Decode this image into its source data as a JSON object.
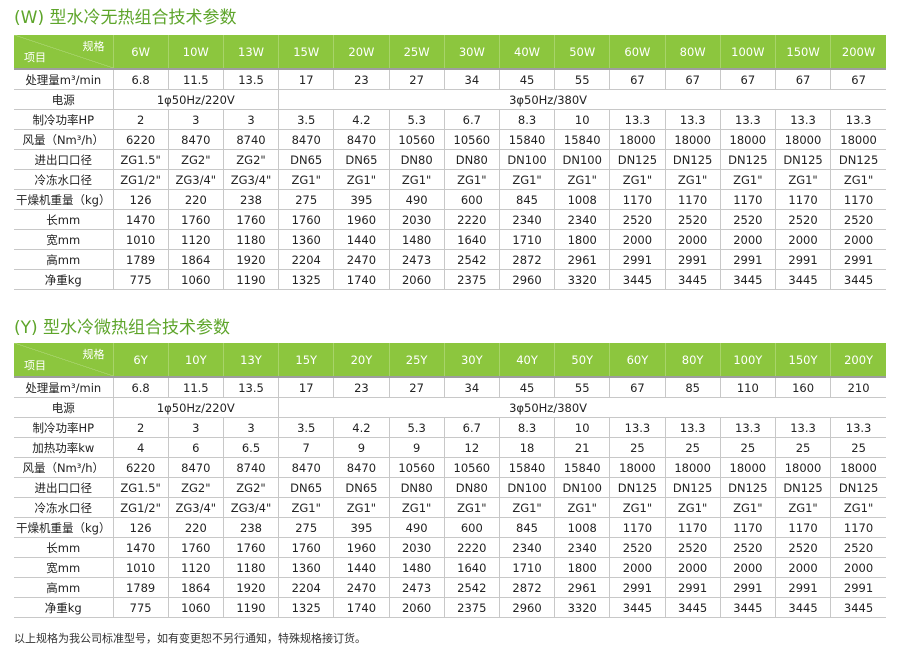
{
  "colors": {
    "accent": "#8cc63e",
    "title": "#5ea52b"
  },
  "tables": [
    {
      "title": "(W) 型水冷无热组合技术参数",
      "corner_top": "规格",
      "corner_bottom": "项目",
      "models": [
        "6W",
        "10W",
        "13W",
        "15W",
        "20W",
        "25W",
        "30W",
        "40W",
        "50W",
        "60W",
        "80W",
        "100W",
        "150W",
        "200W"
      ],
      "power_label": "电源",
      "power_1": "1φ50Hz/220V",
      "power_3": "3φ50Hz/380V",
      "rows": [
        {
          "label": "处理量m³/min",
          "values": [
            "6.8",
            "11.5",
            "13.5",
            "17",
            "23",
            "27",
            "34",
            "45",
            "55",
            "67",
            "67",
            "67",
            "67",
            "67"
          ]
        },
        {
          "power": true
        },
        {
          "label": "制冷功率HP",
          "values": [
            "2",
            "3",
            "3",
            "3.5",
            "4.2",
            "5.3",
            "6.7",
            "8.3",
            "10",
            "13.3",
            "13.3",
            "13.3",
            "13.3",
            "13.3"
          ]
        },
        {
          "label": "风量（Nm³/h）",
          "values": [
            "6220",
            "8470",
            "8740",
            "8470",
            "8470",
            "10560",
            "10560",
            "15840",
            "15840",
            "18000",
            "18000",
            "18000",
            "18000",
            "18000"
          ]
        },
        {
          "label": "进出口口径",
          "values": [
            "ZG1.5\"",
            "ZG2\"",
            "ZG2\"",
            "DN65",
            "DN65",
            "DN80",
            "DN80",
            "DN100",
            "DN100",
            "DN125",
            "DN125",
            "DN125",
            "DN125",
            "DN125"
          ]
        },
        {
          "label": "冷冻水口径",
          "values": [
            "ZG1/2\"",
            "ZG3/4\"",
            "ZG3/4\"",
            "ZG1\"",
            "ZG1\"",
            "ZG1\"",
            "ZG1\"",
            "ZG1\"",
            "ZG1\"",
            "ZG1\"",
            "ZG1\"",
            "ZG1\"",
            "ZG1\"",
            "ZG1\""
          ]
        },
        {
          "label": "干燥机重量（kg）",
          "values": [
            "126",
            "220",
            "238",
            "275",
            "395",
            "490",
            "600",
            "845",
            "1008",
            "1170",
            "1170",
            "1170",
            "1170",
            "1170"
          ]
        },
        {
          "label": "长mm",
          "values": [
            "1470",
            "1760",
            "1760",
            "1760",
            "1960",
            "2030",
            "2220",
            "2340",
            "2340",
            "2520",
            "2520",
            "2520",
            "2520",
            "2520"
          ]
        },
        {
          "label": "宽mm",
          "values": [
            "1010",
            "1120",
            "1180",
            "1360",
            "1440",
            "1480",
            "1640",
            "1710",
            "1800",
            "2000",
            "2000",
            "2000",
            "2000",
            "2000"
          ]
        },
        {
          "label": "高mm",
          "values": [
            "1789",
            "1864",
            "1920",
            "2204",
            "2470",
            "2473",
            "2542",
            "2872",
            "2961",
            "2991",
            "2991",
            "2991",
            "2991",
            "2991"
          ]
        },
        {
          "label": "净重kg",
          "values": [
            "775",
            "1060",
            "1190",
            "1325",
            "1740",
            "2060",
            "2375",
            "2960",
            "3320",
            "3445",
            "3445",
            "3445",
            "3445",
            "3445"
          ]
        }
      ]
    },
    {
      "title": "(Y) 型水冷微热组合技术参数",
      "corner_top": "规格",
      "corner_bottom": "项目",
      "models": [
        "6Y",
        "10Y",
        "13Y",
        "15Y",
        "20Y",
        "25Y",
        "30Y",
        "40Y",
        "50Y",
        "60Y",
        "80Y",
        "100Y",
        "150Y",
        "200Y"
      ],
      "power_label": "电源",
      "power_1": "1φ50Hz/220V",
      "power_3": "3φ50Hz/380V",
      "rows": [
        {
          "label": "处理量m³/min",
          "values": [
            "6.8",
            "11.5",
            "13.5",
            "17",
            "23",
            "27",
            "34",
            "45",
            "55",
            "67",
            "85",
            "110",
            "160",
            "210"
          ]
        },
        {
          "power": true
        },
        {
          "label": "制冷功率HP",
          "values": [
            "2",
            "3",
            "3",
            "3.5",
            "4.2",
            "5.3",
            "6.7",
            "8.3",
            "10",
            "13.3",
            "13.3",
            "13.3",
            "13.3",
            "13.3"
          ]
        },
        {
          "label": "加热功率kw",
          "values": [
            "4",
            "6",
            "6.5",
            "7",
            "9",
            "9",
            "12",
            "18",
            "21",
            "25",
            "25",
            "25",
            "25",
            "25"
          ]
        },
        {
          "label": "风量（Nm³/h）",
          "values": [
            "6220",
            "8470",
            "8740",
            "8470",
            "8470",
            "10560",
            "10560",
            "15840",
            "15840",
            "18000",
            "18000",
            "18000",
            "18000",
            "18000"
          ]
        },
        {
          "label": "进出口口径",
          "values": [
            "ZG1.5\"",
            "ZG2\"",
            "ZG2\"",
            "DN65",
            "DN65",
            "DN80",
            "DN80",
            "DN100",
            "DN100",
            "DN125",
            "DN125",
            "DN125",
            "DN125",
            "DN125"
          ]
        },
        {
          "label": "冷冻水口径",
          "values": [
            "ZG1/2\"",
            "ZG3/4\"",
            "ZG3/4\"",
            "ZG1\"",
            "ZG1\"",
            "ZG1\"",
            "ZG1\"",
            "ZG1\"",
            "ZG1\"",
            "ZG1\"",
            "ZG1\"",
            "ZG1\"",
            "ZG1\"",
            "ZG1\""
          ]
        },
        {
          "label": "干燥机重量（kg）",
          "values": [
            "126",
            "220",
            "238",
            "275",
            "395",
            "490",
            "600",
            "845",
            "1008",
            "1170",
            "1170",
            "1170",
            "1170",
            "1170"
          ]
        },
        {
          "label": "长mm",
          "values": [
            "1470",
            "1760",
            "1760",
            "1760",
            "1960",
            "2030",
            "2220",
            "2340",
            "2340",
            "2520",
            "2520",
            "2520",
            "2520",
            "2520"
          ]
        },
        {
          "label": "宽mm",
          "values": [
            "1010",
            "1120",
            "1180",
            "1360",
            "1440",
            "1480",
            "1640",
            "1710",
            "1800",
            "2000",
            "2000",
            "2000",
            "2000",
            "2000"
          ]
        },
        {
          "label": "高mm",
          "values": [
            "1789",
            "1864",
            "1920",
            "2204",
            "2470",
            "2473",
            "2542",
            "2872",
            "2961",
            "2991",
            "2991",
            "2991",
            "2991",
            "2991"
          ]
        },
        {
          "label": "净重kg",
          "values": [
            "775",
            "1060",
            "1190",
            "1325",
            "1740",
            "2060",
            "2375",
            "2960",
            "3320",
            "3445",
            "3445",
            "3445",
            "3445",
            "3445"
          ]
        }
      ]
    }
  ],
  "footnote": "以上规格为我公司标准型号，如有变更恕不另行通知，特殊规格接订货。"
}
